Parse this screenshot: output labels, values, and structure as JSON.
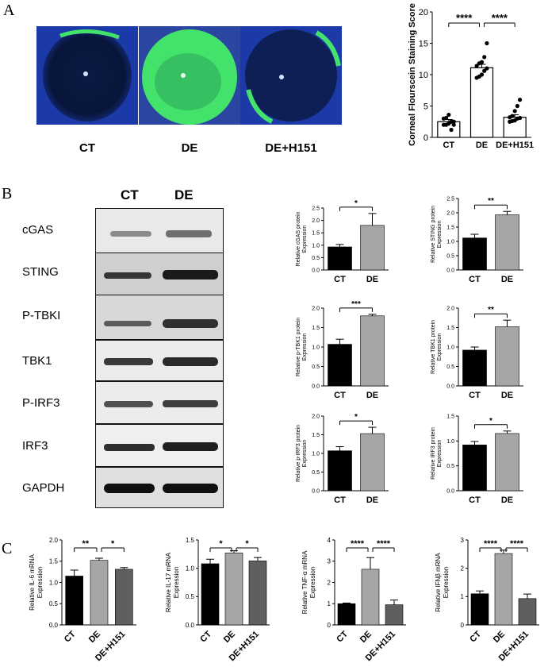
{
  "panels": {
    "a": "A",
    "b": "B",
    "c": "C"
  },
  "panel_a": {
    "image_labels": [
      "CT",
      "DE",
      "DE+H151"
    ]
  },
  "panel_b": {
    "lane_headers": [
      "CT",
      "DE"
    ],
    "blot_rows": [
      "cGAS",
      "STING",
      "P-TBKI",
      "TBK1",
      "P-IRF3",
      "IRF3",
      "GAPDH"
    ]
  },
  "colors": {
    "ct": "#000000",
    "de": "#a6a6a6",
    "de_h151": "#5f5f5f",
    "eye_green": "#43e36b",
    "eye_blue": "#1b3aa8"
  },
  "chart_data": [
    {
      "id": "stain",
      "type": "bar",
      "ylabel": "Corneal Flourscein Staining Score",
      "categories": [
        "CT",
        "DE",
        "DE+H151"
      ],
      "values": [
        2.5,
        11.1,
        3.2
      ],
      "errors": [
        0.35,
        0.55,
        0.4
      ],
      "points": [
        [
          2.0,
          2.0,
          2.2,
          2.5,
          2.5,
          3.0,
          3.1,
          3.6,
          1.2,
          2.0
        ],
        [
          9.5,
          9.7,
          10.0,
          10.6,
          11.0,
          11.4,
          11.8,
          12.0,
          12.8,
          15.0
        ],
        [
          2.5,
          2.6,
          2.7,
          3.0,
          3.1,
          3.2,
          3.4,
          4.2,
          5.0,
          6.0
        ]
      ],
      "ylim": [
        0,
        20
      ],
      "yticks": [
        0,
        5,
        10,
        15,
        20
      ],
      "significance": [
        {
          "from": 0,
          "to": 1,
          "label": "****"
        },
        {
          "from": 1,
          "to": 2,
          "label": "****"
        }
      ]
    },
    {
      "id": "cgas",
      "type": "bar",
      "ylabel": "Relative cGAS protein Expression",
      "categories": [
        "CT",
        "DE"
      ],
      "values": [
        0.93,
        1.8
      ],
      "errors": [
        0.1,
        0.48
      ],
      "ylim": [
        0,
        2.5
      ],
      "yticks": [
        0.0,
        0.5,
        1.0,
        1.5,
        2.0,
        2.5
      ],
      "significance": [
        {
          "from": 0,
          "to": 1,
          "label": "*"
        }
      ]
    },
    {
      "id": "sting",
      "type": "bar",
      "ylabel": "Relative STING protein Expression",
      "categories": [
        "CT",
        "DE"
      ],
      "values": [
        1.12,
        1.93
      ],
      "errors": [
        0.13,
        0.12
      ],
      "ylim": [
        0,
        2.5
      ],
      "yticks": [
        0.0,
        0.5,
        1.0,
        1.5,
        2.0,
        2.5
      ],
      "significance": [
        {
          "from": 0,
          "to": 1,
          "label": "**"
        }
      ]
    },
    {
      "id": "ptbk1",
      "type": "bar",
      "ylabel": "Relative p-TBK1 protein Expression",
      "categories": [
        "CT",
        "DE"
      ],
      "values": [
        1.07,
        1.8
      ],
      "errors": [
        0.13,
        0.04
      ],
      "ylim": [
        0,
        2.0
      ],
      "yticks": [
        0.0,
        0.5,
        1.0,
        1.5,
        2.0
      ],
      "significance": [
        {
          "from": 0,
          "to": 1,
          "label": "***"
        }
      ]
    },
    {
      "id": "tbk1",
      "type": "bar",
      "ylabel": "Relative TBK1 protein Expression",
      "categories": [
        "CT",
        "DE"
      ],
      "values": [
        0.92,
        1.52
      ],
      "errors": [
        0.08,
        0.17
      ],
      "ylim": [
        0,
        2.0
      ],
      "yticks": [
        0.0,
        0.5,
        1.0,
        1.5,
        2.0
      ],
      "significance": [
        {
          "from": 0,
          "to": 1,
          "label": "**"
        }
      ]
    },
    {
      "id": "pirf3",
      "type": "bar",
      "ylabel": "Relative p-IRF3 protein Expression",
      "categories": [
        "CT",
        "DE"
      ],
      "values": [
        1.07,
        1.53
      ],
      "errors": [
        0.11,
        0.17
      ],
      "ylim": [
        0,
        2.0
      ],
      "yticks": [
        0.0,
        0.5,
        1.0,
        1.5,
        2.0
      ],
      "significance": [
        {
          "from": 0,
          "to": 1,
          "label": "*"
        }
      ]
    },
    {
      "id": "irf3",
      "type": "bar",
      "ylabel": "Relative IRF3 protein Expression",
      "categories": [
        "CT",
        "DE"
      ],
      "values": [
        0.92,
        1.15
      ],
      "errors": [
        0.07,
        0.05
      ],
      "ylim": [
        0,
        1.5
      ],
      "yticks": [
        0.0,
        0.5,
        1.0,
        1.5
      ],
      "significance": [
        {
          "from": 0,
          "to": 1,
          "label": "*"
        }
      ]
    },
    {
      "id": "il6",
      "type": "bar",
      "ylabel": "Relative IL-6 mRNA Expression",
      "categories": [
        "CT",
        "DE",
        "DE+H151"
      ],
      "values": [
        1.15,
        1.52,
        1.31
      ],
      "errors": [
        0.14,
        0.05,
        0.04
      ],
      "ylim": [
        0,
        2.0
      ],
      "yticks": [
        0.0,
        0.5,
        1.0,
        1.5,
        2.0
      ],
      "significance": [
        {
          "from": 0,
          "to": 1,
          "label": "**"
        },
        {
          "from": 1,
          "to": 2,
          "label": "*"
        }
      ]
    },
    {
      "id": "il17",
      "type": "bar",
      "ylabel": "Relative IL-17 mRNA Expression",
      "categories": [
        "CT",
        "DE",
        "DE+H151"
      ],
      "values": [
        1.08,
        1.27,
        1.13
      ],
      "errors": [
        0.08,
        0.04,
        0.06
      ],
      "ylim": [
        0,
        1.5
      ],
      "yticks": [
        0.0,
        0.5,
        1.0,
        1.5
      ],
      "significance": [
        {
          "from": 0,
          "to": 1,
          "label": "*"
        },
        {
          "from": 1,
          "to": 2,
          "label": "*"
        }
      ]
    },
    {
      "id": "tnfa",
      "type": "bar",
      "ylabel": "Relative TNF-α mRNA Expression",
      "categories": [
        "CT",
        "DE",
        "DE+H151"
      ],
      "values": [
        1.0,
        2.62,
        0.95
      ],
      "errors": [
        0.03,
        0.55,
        0.22
      ],
      "ylim": [
        0,
        4
      ],
      "yticks": [
        0,
        1,
        2,
        3,
        4
      ],
      "significance": [
        {
          "from": 0,
          "to": 1,
          "label": "****"
        },
        {
          "from": 1,
          "to": 2,
          "label": "****"
        }
      ]
    },
    {
      "id": "ifnb",
      "type": "bar",
      "ylabel": "Relative IFNβ mRNA Expression",
      "categories": [
        "CT",
        "DE",
        "DE+H151"
      ],
      "values": [
        1.1,
        2.52,
        0.93
      ],
      "errors": [
        0.1,
        0.12,
        0.16
      ],
      "ylim": [
        0,
        3
      ],
      "yticks": [
        0,
        1,
        2,
        3
      ],
      "significance": [
        {
          "from": 0,
          "to": 1,
          "label": "****"
        },
        {
          "from": 1,
          "to": 2,
          "label": "****"
        }
      ]
    }
  ]
}
